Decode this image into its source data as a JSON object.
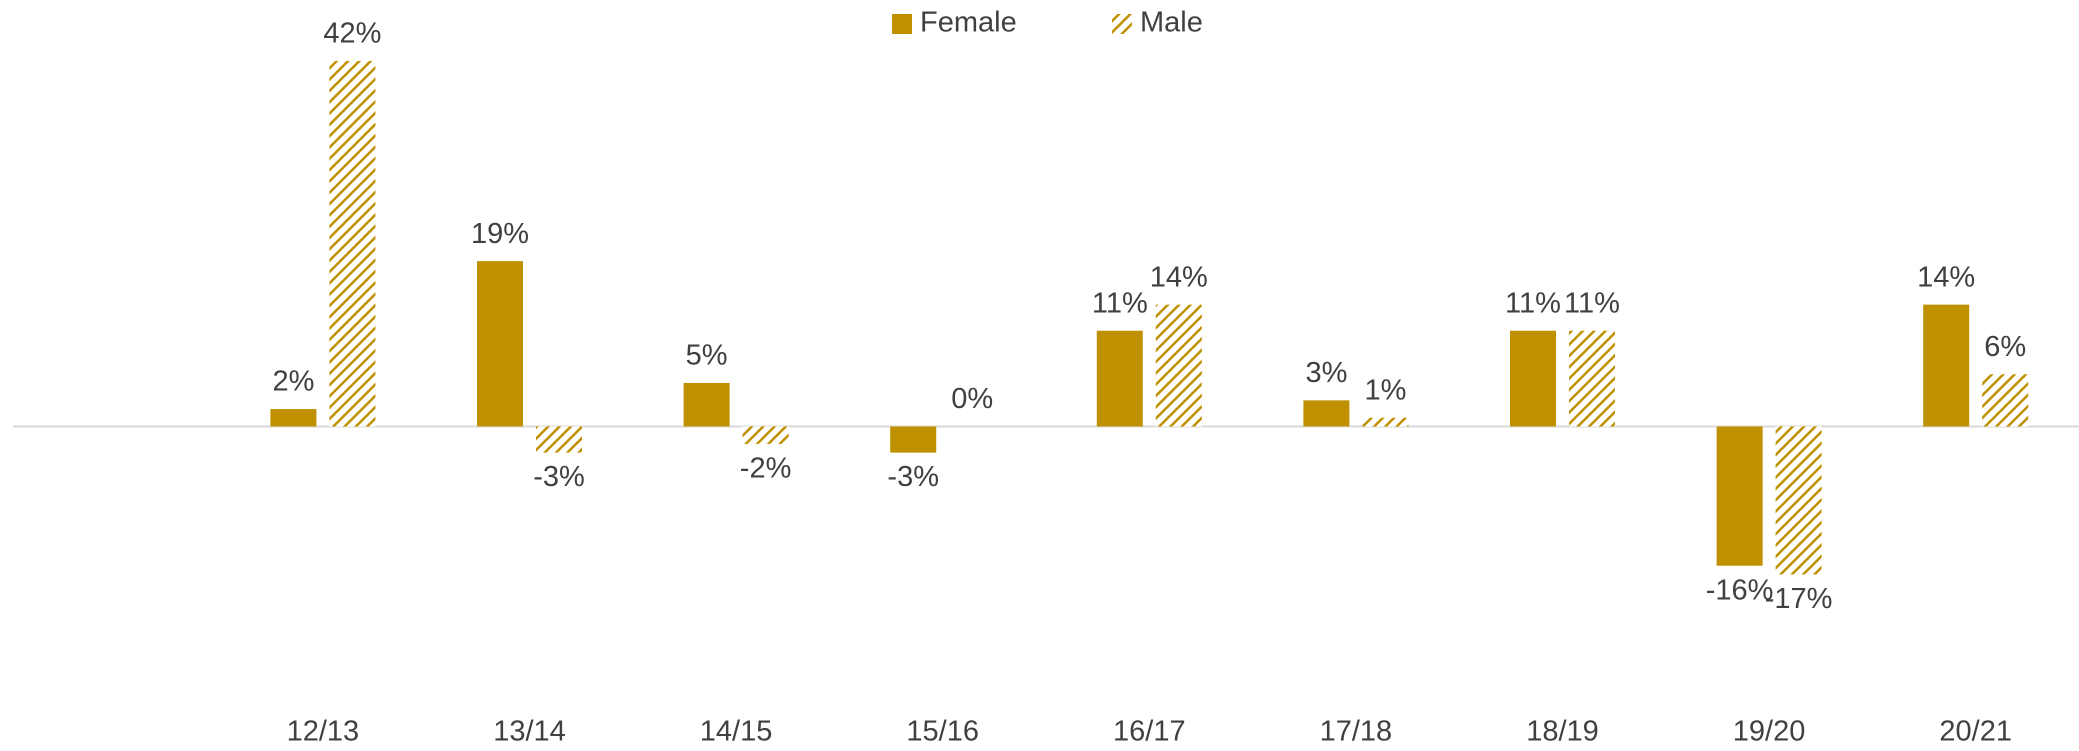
{
  "chart_data": {
    "type": "bar",
    "categories": [
      null,
      "12/13",
      "13/14",
      "14/15",
      "15/16",
      "16/17",
      "17/18",
      "18/19",
      "19/20",
      "20/21"
    ],
    "series": [
      {
        "name": "Female",
        "color": "#bf9000",
        "hatch": false,
        "values": [
          null,
          2,
          19,
          5,
          -3,
          11,
          3,
          11,
          -16,
          14
        ],
        "value_labels": [
          null,
          "2%",
          "19%",
          "5%",
          "-3%",
          "11%",
          "3%",
          "11%",
          "-16%",
          "14%"
        ]
      },
      {
        "name": "Male",
        "color": "#bf9000",
        "hatch": true,
        "values": [
          null,
          42,
          -3,
          -2,
          0,
          14,
          1,
          11,
          -17,
          6
        ],
        "value_labels": [
          null,
          "42%",
          "-3%",
          "-2%",
          "0%",
          "14%",
          "1%",
          "11%",
          "-17%",
          "6%"
        ]
      }
    ],
    "ylim": [
      -32,
      49
    ],
    "legend": "top"
  }
}
